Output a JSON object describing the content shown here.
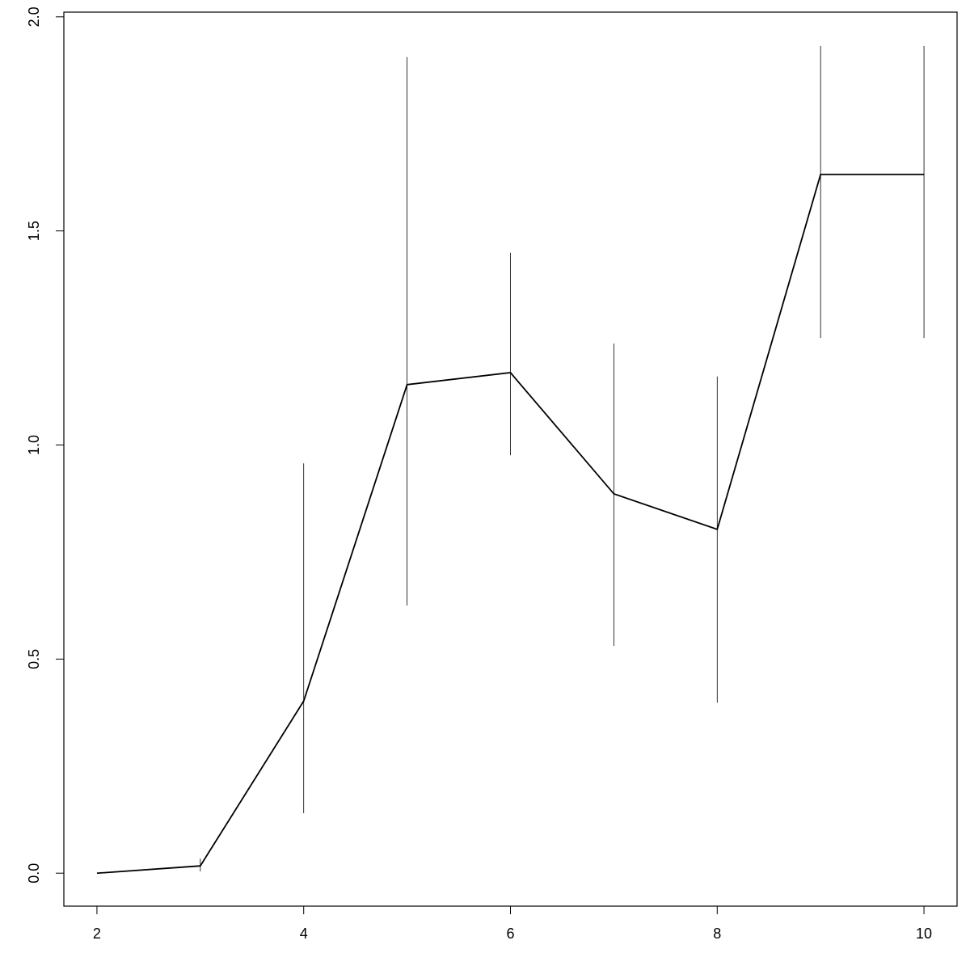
{
  "chart_data": {
    "type": "line",
    "x": [
      2,
      3,
      4,
      5,
      6,
      7,
      8,
      9,
      10
    ],
    "series": [
      {
        "color": "#000000",
        "values": [
          0,
          0.017,
          0.402,
          1.141,
          1.169,
          0.886,
          0.803,
          1.632,
          1.632
        ],
        "lower": [
          0,
          0.004,
          0.14,
          0.625,
          0.976,
          0.531,
          0.398,
          1.25,
          1.25
        ],
        "upper": [
          0,
          0.034,
          0.957,
          1.906,
          1.449,
          1.237,
          1.16,
          1.932,
          1.932
        ]
      }
    ],
    "xlim": [
      1.68,
      10.32
    ],
    "xticks": [
      2,
      4,
      6,
      8,
      10
    ],
    "ylim": [
      -0.077,
      2.011
    ],
    "yticks": [
      {
        "value": 0,
        "label": "0.0"
      },
      0.5,
      {
        "value": 1,
        "label": "1.0"
      },
      1.5,
      {
        "value": 2,
        "label": "2.0"
      }
    ],
    "grid": false
  }
}
